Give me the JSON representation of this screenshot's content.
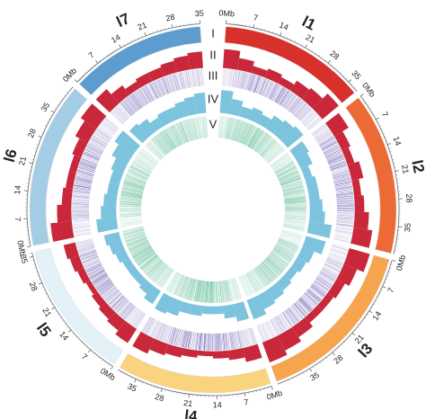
{
  "chart_data": {
    "type": "circos",
    "chromosomes": [
      {
        "name": "l1",
        "color": "#d8302a",
        "length": 38
      },
      {
        "name": "l2",
        "color": "#ec6a35",
        "length": 42
      },
      {
        "name": "l3",
        "color": "#f6a44e",
        "length": 44
      },
      {
        "name": "l4",
        "color": "#f9d37e",
        "length": 40
      },
      {
        "name": "l5",
        "color": "#e3f1f8",
        "length": 36
      },
      {
        "name": "l6",
        "color": "#a3cde5",
        "length": 43
      },
      {
        "name": "l7",
        "color": "#5c9ccf",
        "length": 35
      }
    ],
    "ticks": [
      {
        "value": 0,
        "label": "0Mb"
      },
      7,
      14,
      21,
      28,
      35
    ],
    "tracks": [
      {
        "name": "I"
      },
      {
        "name": "II",
        "style": "histogram",
        "color": "#c8283a",
        "values": [
          [
            0.8,
            0.5,
            0.3,
            0.4,
            0.3,
            0.5,
            0.6,
            0.9
          ],
          [
            0.7,
            0.4,
            0.3,
            0.5,
            0.3,
            0.4,
            0.6,
            0.8
          ],
          [
            0.9,
            0.6,
            0.4,
            0.3,
            0.3,
            0.5,
            0.7,
            0.9
          ],
          [
            0.6,
            0.4,
            0.3,
            0.2,
            0.3,
            0.4,
            0.5,
            0.7
          ],
          [
            0.7,
            0.5,
            0.4,
            0.3,
            0.2,
            0.3,
            0.4,
            0.5
          ],
          [
            0.9,
            0.6,
            0.4,
            0.3,
            0.3,
            0.4,
            0.6,
            0.8
          ],
          [
            0.8,
            0.5,
            0.3,
            0.4,
            0.4,
            0.5,
            0.6,
            0.7
          ]
        ]
      },
      {
        "name": "III",
        "style": "density",
        "color": "#5b4aa8",
        "values": [
          [
            0.3,
            0.6,
            0.8,
            0.7,
            0.8,
            0.6,
            0.5,
            0.3
          ],
          [
            0.4,
            0.7,
            0.8,
            0.6,
            0.8,
            0.7,
            0.5,
            0.3
          ],
          [
            0.3,
            0.5,
            0.7,
            0.8,
            0.8,
            0.6,
            0.4,
            0.3
          ],
          [
            0.4,
            0.6,
            0.8,
            0.9,
            0.8,
            0.7,
            0.5,
            0.4
          ],
          [
            0.3,
            0.5,
            0.6,
            0.7,
            0.8,
            0.7,
            0.6,
            0.5
          ],
          [
            0.3,
            0.5,
            0.7,
            0.8,
            0.8,
            0.7,
            0.5,
            0.3
          ],
          [
            0.3,
            0.6,
            0.7,
            0.6,
            0.6,
            0.5,
            0.4,
            0.3
          ]
        ]
      },
      {
        "name": "IV",
        "style": "histogram",
        "color": "#7cc3dd",
        "values": [
          [
            0.9,
            0.6,
            0.4,
            0.5,
            0.4,
            0.6,
            0.7,
            0.8
          ],
          [
            0.6,
            0.5,
            0.3,
            0.4,
            0.4,
            0.5,
            0.6,
            0.9
          ],
          [
            0.8,
            0.5,
            0.4,
            0.3,
            0.4,
            0.5,
            0.6,
            0.8
          ],
          [
            0.7,
            0.5,
            0.3,
            0.3,
            0.4,
            0.4,
            0.6,
            0.7
          ],
          [
            0.6,
            0.4,
            0.3,
            0.3,
            0.3,
            0.4,
            0.5,
            0.6
          ],
          [
            0.8,
            0.6,
            0.5,
            0.4,
            0.4,
            0.5,
            0.7,
            0.9
          ],
          [
            0.7,
            0.6,
            0.4,
            0.5,
            0.5,
            0.6,
            0.7,
            0.8
          ]
        ]
      },
      {
        "name": "V",
        "style": "density",
        "color": "#4fb58c",
        "values": [
          [
            0.3,
            0.5,
            0.6,
            0.6,
            0.7,
            0.5,
            0.4,
            0.3
          ],
          [
            0.3,
            0.6,
            0.7,
            0.6,
            0.7,
            0.6,
            0.4,
            0.3
          ],
          [
            0.2,
            0.5,
            0.6,
            0.7,
            0.7,
            0.6,
            0.4,
            0.3
          ],
          [
            0.3,
            0.5,
            0.7,
            0.8,
            0.7,
            0.6,
            0.5,
            0.3
          ],
          [
            0.3,
            0.4,
            0.5,
            0.6,
            0.7,
            0.6,
            0.5,
            0.4
          ],
          [
            0.2,
            0.4,
            0.6,
            0.7,
            0.7,
            0.6,
            0.4,
            0.3
          ],
          [
            0.3,
            0.5,
            0.6,
            0.5,
            0.5,
            0.4,
            0.4,
            0.3
          ]
        ]
      }
    ]
  }
}
